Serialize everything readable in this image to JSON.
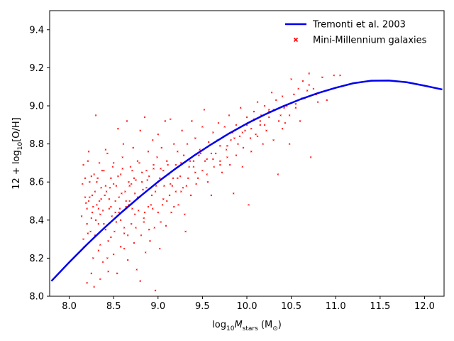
{
  "chart_data": {
    "type": "scatter",
    "xlabel": {
      "pre": "log",
      "sub": "10",
      "mid": "M",
      "msub": "stars",
      "post": " (M",
      "osub": "⊙",
      "end": ")"
    },
    "ylabel": {
      "pre": "12 + log",
      "sub": "10",
      "post": "[O/H]"
    },
    "xlim": [
      7.78,
      12.22
    ],
    "ylim": [
      8.0,
      9.5
    ],
    "xticks": [
      8.0,
      8.5,
      9.0,
      9.5,
      10.0,
      10.5,
      11.0,
      11.5,
      12.0
    ],
    "xtick_labels": [
      "8.0",
      "8.5",
      "9.0",
      "9.5",
      "10.0",
      "10.5",
      "11.0",
      "11.5",
      "12.0"
    ],
    "yticks": [
      8.0,
      8.2,
      8.4,
      8.6,
      8.8,
      9.0,
      9.2,
      9.4
    ],
    "ytick_labels": [
      "8.0",
      "8.2",
      "8.4",
      "8.6",
      "8.8",
      "9.0",
      "9.2",
      "9.4"
    ],
    "grid": false,
    "legend_position": "top-right",
    "series": [
      {
        "name": "Tremonti et al. 2003",
        "kind": "line",
        "color": "#0000ee",
        "x": [
          7.8,
          8.0,
          8.2,
          8.4,
          8.6,
          8.8,
          9.0,
          9.2,
          9.4,
          9.6,
          9.8,
          10.0,
          10.2,
          10.4,
          10.6,
          10.8,
          11.0,
          11.2,
          11.4,
          11.6,
          11.8,
          12.0,
          12.2
        ],
        "y": [
          8.08,
          8.178,
          8.272,
          8.361,
          8.445,
          8.525,
          8.601,
          8.671,
          8.737,
          8.798,
          8.855,
          8.907,
          8.954,
          8.996,
          9.034,
          9.067,
          9.095,
          9.119,
          9.132,
          9.133,
          9.124,
          9.106,
          9.086
        ]
      },
      {
        "name": "Mini-Millennium galaxies",
        "kind": "scatter",
        "color": "#ff0000",
        "points": [
          [
            8.16,
            8.69
          ],
          [
            8.18,
            8.52
          ],
          [
            8.2,
            8.46
          ],
          [
            8.21,
            8.33
          ],
          [
            8.22,
            8.76
          ],
          [
            8.23,
            8.6
          ],
          [
            8.25,
            8.41
          ],
          [
            8.26,
            8.53
          ],
          [
            8.27,
            8.2
          ],
          [
            8.28,
            8.64
          ],
          [
            8.3,
            8.95
          ],
          [
            8.31,
            8.48
          ],
          [
            8.33,
            8.38
          ],
          [
            8.34,
            8.7
          ],
          [
            8.35,
            8.27
          ],
          [
            8.36,
            8.57
          ],
          [
            8.38,
            8.45
          ],
          [
            8.39,
            8.66
          ],
          [
            8.41,
            8.77
          ],
          [
            8.42,
            8.55
          ],
          [
            8.44,
            8.29
          ],
          [
            8.45,
            8.51
          ],
          [
            8.47,
            8.62
          ],
          [
            8.48,
            8.42
          ],
          [
            8.5,
            8.7
          ],
          [
            8.51,
            8.34
          ],
          [
            8.53,
            8.58
          ],
          [
            8.55,
            8.88
          ],
          [
            8.57,
            8.46
          ],
          [
            8.58,
            8.64
          ],
          [
            8.6,
            8.73
          ],
          [
            8.62,
            8.36
          ],
          [
            8.63,
            8.55
          ],
          [
            8.65,
            8.92
          ],
          [
            8.67,
            8.48
          ],
          [
            8.69,
            8.68
          ],
          [
            8.7,
            8.59
          ],
          [
            8.72,
            8.78
          ],
          [
            8.74,
            8.43
          ],
          [
            8.75,
            8.61
          ],
          [
            8.77,
            8.71
          ],
          [
            8.79,
            8.52
          ],
          [
            8.8,
            8.87
          ],
          [
            8.82,
            8.65
          ],
          [
            8.84,
            8.39
          ],
          [
            8.85,
            8.94
          ],
          [
            8.87,
            8.57
          ],
          [
            8.89,
            8.76
          ],
          [
            8.9,
            8.63
          ],
          [
            8.92,
            8.48
          ],
          [
            8.94,
            8.82
          ],
          [
            8.95,
            8.67
          ],
          [
            8.97,
            8.55
          ],
          [
            8.99,
            8.73
          ],
          [
            9.0,
            8.85
          ],
          [
            9.02,
            8.62
          ],
          [
            9.04,
            8.78
          ],
          [
            9.06,
            8.51
          ],
          [
            9.08,
            8.92
          ],
          [
            9.1,
            8.71
          ],
          [
            9.12,
            8.64
          ],
          [
            9.14,
            8.93
          ],
          [
            9.16,
            8.58
          ],
          [
            9.18,
            8.8
          ],
          [
            9.2,
            8.69
          ],
          [
            9.22,
            8.76
          ],
          [
            9.25,
            8.63
          ],
          [
            9.27,
            8.87
          ],
          [
            9.29,
            8.74
          ],
          [
            9.31,
            8.34
          ],
          [
            9.33,
            8.8
          ],
          [
            9.35,
            8.68
          ],
          [
            9.38,
            8.92
          ],
          [
            9.4,
            8.71
          ],
          [
            9.42,
            8.83
          ],
          [
            9.45,
            8.62
          ],
          [
            9.47,
            8.77
          ],
          [
            9.5,
            8.89
          ],
          [
            9.52,
            8.98
          ],
          [
            9.55,
            8.72
          ],
          [
            9.57,
            8.81
          ],
          [
            9.6,
            8.53
          ],
          [
            9.62,
            8.86
          ],
          [
            9.65,
            8.75
          ],
          [
            9.68,
            8.91
          ],
          [
            9.7,
            8.79
          ],
          [
            9.72,
            8.65
          ],
          [
            9.75,
            8.89
          ],
          [
            9.78,
            8.73
          ],
          [
            9.8,
            8.95
          ],
          [
            9.82,
            8.82
          ],
          [
            9.85,
            8.54
          ],
          [
            9.88,
            8.9
          ],
          [
            9.9,
            8.8
          ],
          [
            9.93,
            8.99
          ],
          [
            9.95,
            8.68
          ],
          [
            9.98,
            8.87
          ],
          [
            10.0,
            8.94
          ],
          [
            10.02,
            8.48
          ],
          [
            10.05,
            8.76
          ],
          [
            10.08,
            8.97
          ],
          [
            10.1,
            8.85
          ],
          [
            10.12,
            9.02
          ],
          [
            10.15,
            8.9
          ],
          [
            10.18,
            8.8
          ],
          [
            10.2,
            9.0
          ],
          [
            10.22,
            8.87
          ],
          [
            10.25,
            8.97
          ],
          [
            10.28,
            9.07
          ],
          [
            10.3,
            8.82
          ],
          [
            10.33,
            9.03
          ],
          [
            10.35,
            8.64
          ],
          [
            10.38,
            8.95
          ],
          [
            10.4,
            9.05
          ],
          [
            10.43,
            8.91
          ],
          [
            10.45,
            9.0
          ],
          [
            10.48,
            8.8
          ],
          [
            10.5,
            9.14
          ],
          [
            10.53,
            9.06
          ],
          [
            10.55,
            8.99
          ],
          [
            10.58,
            9.09
          ],
          [
            10.6,
            8.92
          ],
          [
            10.63,
            9.13
          ],
          [
            10.65,
            9.04
          ],
          [
            10.68,
            9.08
          ],
          [
            10.7,
            9.17
          ],
          [
            10.72,
            8.73
          ],
          [
            10.75,
            9.09
          ],
          [
            10.8,
            9.02
          ],
          [
            10.85,
            9.15
          ],
          [
            10.9,
            9.03
          ],
          [
            10.98,
            9.16
          ],
          [
            11.05,
            9.16
          ],
          [
            8.14,
            8.42
          ],
          [
            8.15,
            8.59
          ],
          [
            8.17,
            8.26
          ],
          [
            8.19,
            8.49
          ],
          [
            8.2,
            8.07
          ],
          [
            8.21,
            8.71
          ],
          [
            8.22,
            8.5
          ],
          [
            8.24,
            8.34
          ],
          [
            8.25,
            8.63
          ],
          [
            8.26,
            8.44
          ],
          [
            8.28,
            8.05
          ],
          [
            8.29,
            8.55
          ],
          [
            8.3,
            8.4
          ],
          [
            8.32,
            8.62
          ],
          [
            8.33,
            8.24
          ],
          [
            8.34,
            8.5
          ],
          [
            8.35,
            8.43
          ],
          [
            8.37,
            8.66
          ],
          [
            8.38,
            8.18
          ],
          [
            8.4,
            8.53
          ],
          [
            8.41,
            8.35
          ],
          [
            8.43,
            8.75
          ],
          [
            8.44,
            8.13
          ],
          [
            8.46,
            8.57
          ],
          [
            8.47,
            8.47
          ],
          [
            8.49,
            8.68
          ],
          [
            8.5,
            8.22
          ],
          [
            8.52,
            8.5
          ],
          [
            8.53,
            8.39
          ],
          [
            8.55,
            8.63
          ],
          [
            8.56,
            8.44
          ],
          [
            8.58,
            8.26
          ],
          [
            8.59,
            8.54
          ],
          [
            8.61,
            8.8
          ],
          [
            8.62,
            8.33
          ],
          [
            8.64,
            8.47
          ],
          [
            8.66,
            8.19
          ],
          [
            8.67,
            8.6
          ],
          [
            8.68,
            8.5
          ],
          [
            8.7,
            8.38
          ],
          [
            8.71,
            8.66
          ],
          [
            8.73,
            8.28
          ],
          [
            8.74,
            8.54
          ],
          [
            8.76,
            8.14
          ],
          [
            8.78,
            8.45
          ],
          [
            8.79,
            8.7
          ],
          [
            8.81,
            8.32
          ],
          [
            8.83,
            8.56
          ],
          [
            8.84,
            8.41
          ],
          [
            8.86,
            8.23
          ],
          [
            8.88,
            8.61
          ],
          [
            8.89,
            8.47
          ],
          [
            8.91,
            8.29
          ],
          [
            8.93,
            8.53
          ],
          [
            8.95,
            8.69
          ],
          [
            8.96,
            8.36
          ],
          [
            8.98,
            8.58
          ],
          [
            9.0,
            8.44
          ],
          [
            9.02,
            8.25
          ],
          [
            9.03,
            8.67
          ],
          [
            9.05,
            8.48
          ],
          [
            9.07,
            8.58
          ],
          [
            9.09,
            8.37
          ],
          [
            9.11,
            8.69
          ],
          [
            9.13,
            8.53
          ],
          [
            9.15,
            8.44
          ],
          [
            9.17,
            8.62
          ],
          [
            9.2,
            8.55
          ],
          [
            9.23,
            8.48
          ],
          [
            9.26,
            8.7
          ],
          [
            9.28,
            8.57
          ],
          [
            9.3,
            8.43
          ],
          [
            9.34,
            8.62
          ],
          [
            9.37,
            8.53
          ],
          [
            9.4,
            8.68
          ],
          [
            9.43,
            8.59
          ],
          [
            9.46,
            8.74
          ],
          [
            9.5,
            8.66
          ],
          [
            9.53,
            8.71
          ],
          [
            9.56,
            8.6
          ],
          [
            9.6,
            8.75
          ],
          [
            9.63,
            8.68
          ],
          [
            9.67,
            8.82
          ],
          [
            9.7,
            8.71
          ],
          [
            9.74,
            8.84
          ],
          [
            9.77,
            8.77
          ],
          [
            9.81,
            8.69
          ],
          [
            9.84,
            8.86
          ],
          [
            9.88,
            8.74
          ],
          [
            9.92,
            8.84
          ],
          [
            9.96,
            8.78
          ],
          [
            10.0,
            8.9
          ],
          [
            10.04,
            8.83
          ],
          [
            10.08,
            8.93
          ],
          [
            10.12,
            8.84
          ],
          [
            10.16,
            8.95
          ],
          [
            10.2,
            8.9
          ],
          [
            10.25,
            8.94
          ],
          [
            10.3,
            8.98
          ],
          [
            10.36,
            8.92
          ],
          [
            10.42,
            8.99
          ],
          [
            10.48,
            8.95
          ],
          [
            10.55,
            9.01
          ],
          [
            10.62,
            9.04
          ],
          [
            10.7,
            9.11
          ],
          [
            10.78,
            9.06
          ],
          [
            8.16,
            8.3
          ],
          [
            8.18,
            8.62
          ],
          [
            8.2,
            8.38
          ],
          [
            8.23,
            8.52
          ],
          [
            8.25,
            8.12
          ],
          [
            8.27,
            8.47
          ],
          [
            8.29,
            8.32
          ],
          [
            8.31,
            8.6
          ],
          [
            8.33,
            8.46
          ],
          [
            8.35,
            8.09
          ],
          [
            8.36,
            8.51
          ],
          [
            8.39,
            8.38
          ],
          [
            8.41,
            8.58
          ],
          [
            8.43,
            8.2
          ],
          [
            8.45,
            8.46
          ],
          [
            8.47,
            8.31
          ],
          [
            8.5,
            8.59
          ],
          [
            8.52,
            8.44
          ],
          [
            8.54,
            8.12
          ],
          [
            8.56,
            8.52
          ],
          [
            8.58,
            8.4
          ],
          [
            8.6,
            8.67
          ],
          [
            8.62,
            8.25
          ],
          [
            8.64,
            8.5
          ],
          [
            8.66,
            8.32
          ],
          [
            8.68,
            8.58
          ],
          [
            8.71,
            8.46
          ],
          [
            8.73,
            8.62
          ],
          [
            8.75,
            8.36
          ],
          [
            8.77,
            8.52
          ],
          [
            8.8,
            8.08
          ],
          [
            8.82,
            8.6
          ],
          [
            8.85,
            8.44
          ],
          [
            8.87,
            8.66
          ],
          [
            8.9,
            8.35
          ],
          [
            8.92,
            8.57
          ],
          [
            8.94,
            8.46
          ],
          [
            8.97,
            8.03
          ],
          [
            9.0,
            8.6
          ],
          [
            9.03,
            8.39
          ],
          [
            9.06,
            8.66
          ],
          [
            9.1,
            8.5
          ],
          [
            9.14,
            8.59
          ],
          [
            9.18,
            8.47
          ],
          [
            9.22,
            8.62
          ],
          [
            9.26,
            8.55
          ],
          [
            9.32,
            8.58
          ],
          [
            9.36,
            8.71
          ],
          [
            9.42,
            8.65
          ],
          [
            9.48,
            8.75
          ],
          [
            9.55,
            8.64
          ],
          [
            9.62,
            8.72
          ],
          [
            9.7,
            8.69
          ],
          [
            9.78,
            8.79
          ],
          [
            9.86,
            8.83
          ],
          [
            9.95,
            8.86
          ],
          [
            10.05,
            8.88
          ],
          [
            10.15,
            8.92
          ],
          [
            10.25,
            8.98
          ],
          [
            10.4,
            8.88
          ]
        ]
      }
    ]
  }
}
